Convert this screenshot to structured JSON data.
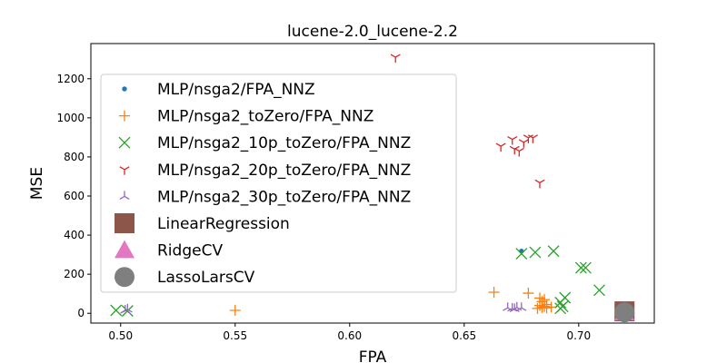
{
  "chart_data": {
    "type": "scatter",
    "title": "lucene-2.0_lucene-2.2",
    "xlabel": "FPA",
    "ylabel": "MSE",
    "xlim": [
      0.487,
      0.733
    ],
    "ylim": [
      -50,
      1380
    ],
    "xticks": [
      "0.50",
      "0.55",
      "0.60",
      "0.65",
      "0.70"
    ],
    "yticks": [
      "0",
      "200",
      "400",
      "600",
      "800",
      "1000",
      "1200"
    ],
    "grid": false,
    "legend_position": "upper left",
    "series": [
      {
        "name": "MLP/nsga2/FPA_NNZ",
        "color": "#1f77b4",
        "marker": "dot",
        "points": [
          [
            0.675,
            318
          ]
        ]
      },
      {
        "name": "MLP/nsga2_toZero/FPA_NNZ",
        "color": "#ff7f0e",
        "marker": "plus",
        "points": [
          [
            0.55,
            15
          ],
          [
            0.663,
            108
          ],
          [
            0.678,
            103
          ],
          [
            0.683,
            78
          ],
          [
            0.684,
            60
          ],
          [
            0.685,
            70
          ],
          [
            0.686,
            45
          ],
          [
            0.683,
            40
          ],
          [
            0.684,
            30
          ],
          [
            0.686,
            28
          ],
          [
            0.688,
            32
          ],
          [
            0.682,
            25
          ],
          [
            0.685,
            35
          ]
        ]
      },
      {
        "name": "MLP/nsga2_10p_toZero/FPA_NNZ",
        "color": "#2ca02c",
        "marker": "x",
        "points": [
          [
            0.498,
            15
          ],
          [
            0.503,
            12
          ],
          [
            0.675,
            305
          ],
          [
            0.681,
            312
          ],
          [
            0.689,
            318
          ],
          [
            0.692,
            55
          ],
          [
            0.693,
            35
          ],
          [
            0.692,
            25
          ],
          [
            0.694,
            80
          ],
          [
            0.701,
            233
          ],
          [
            0.703,
            233
          ],
          [
            0.709,
            118
          ]
        ]
      },
      {
        "name": "MLP/nsga2_20p_toZero/FPA_NNZ",
        "color": "#d62728",
        "marker": "tri_down",
        "points": [
          [
            0.62,
            1310
          ],
          [
            0.666,
            855
          ],
          [
            0.671,
            890
          ],
          [
            0.672,
            840
          ],
          [
            0.674,
            830
          ],
          [
            0.676,
            875
          ],
          [
            0.678,
            898
          ],
          [
            0.68,
            898
          ],
          [
            0.683,
            668
          ]
        ]
      },
      {
        "name": "MLP/nsga2_30p_toZero/FPA_NNZ",
        "color": "#9467bd",
        "marker": "tri_up",
        "points": [
          [
            0.502,
            15
          ],
          [
            0.503,
            20
          ],
          [
            0.669,
            28
          ],
          [
            0.671,
            25
          ],
          [
            0.673,
            30
          ],
          [
            0.675,
            28
          ],
          [
            0.672,
            22
          ]
        ]
      },
      {
        "name": "LinearRegression",
        "color": "#8c564b",
        "marker": "square",
        "points": [
          [
            0.72,
            10
          ]
        ]
      },
      {
        "name": "RidgeCV",
        "color": "#e377c2",
        "marker": "triangle",
        "points": [
          [
            0.72,
            5
          ]
        ]
      },
      {
        "name": "LassoLarsCV",
        "color": "#7f7f7f",
        "marker": "circle",
        "points": [
          [
            0.72,
            5
          ]
        ]
      }
    ]
  }
}
